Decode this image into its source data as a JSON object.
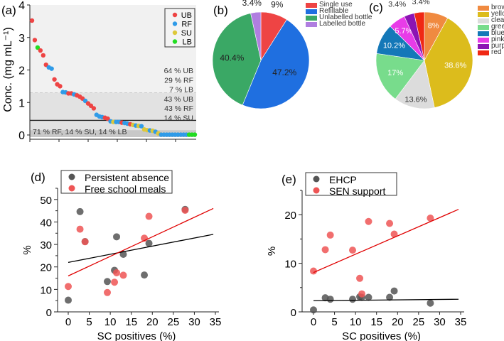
{
  "chart_data": [
    {
      "panel": "(a)",
      "type": "scatter",
      "ylabel": "Conc. (mg mL⁻¹)",
      "ylim": [
        0,
        4
      ],
      "yticks": [
        "0",
        "1",
        "2",
        "3",
        "4"
      ],
      "legend": {
        "placement": "top-right",
        "entries": [
          {
            "name": "UB",
            "color": "#ee4444"
          },
          {
            "name": "RF",
            "color": "#2f9be8"
          },
          {
            "name": "SU",
            "color": "#ddc83a"
          },
          {
            "name": "LB",
            "color": "#22dd22"
          }
        ]
      },
      "threshold": 0.45,
      "bands": [
        1.3,
        0.45,
        0.15
      ],
      "annotations": [
        "64 % UB",
        "29 % RF",
        "7 % LB",
        "43 % UB",
        "43 % RF",
        "14 % SU",
        "71 % RF, 14 % SU, 14 % LB"
      ],
      "points": [
        [
          "UB",
          3.52
        ],
        [
          "UB",
          2.92
        ],
        [
          "LB",
          2.69
        ],
        [
          "UB",
          2.6
        ],
        [
          "UB",
          2.45
        ],
        [
          "UB",
          2.16
        ],
        [
          "RF",
          2.08
        ],
        [
          "RF",
          2.04
        ],
        [
          "UB",
          1.71
        ],
        [
          "UB",
          1.56
        ],
        [
          "UB",
          1.5
        ],
        [
          "RF",
          1.32
        ],
        [
          "RF",
          1.31
        ],
        [
          "UB",
          1.28
        ],
        [
          "UB",
          1.28
        ],
        [
          "RF",
          1.25
        ],
        [
          "UB",
          1.22
        ],
        [
          "UB",
          1.18
        ],
        [
          "UB",
          1.12
        ],
        [
          "RF",
          1.05
        ],
        [
          "UB",
          0.97
        ],
        [
          "UB",
          0.9
        ],
        [
          "UB",
          0.82
        ],
        [
          "RF",
          0.62
        ],
        [
          "RF",
          0.57
        ],
        [
          "RF",
          0.55
        ],
        [
          "UB",
          0.53
        ],
        [
          "UB",
          0.5
        ],
        [
          "RF",
          0.42
        ],
        [
          "SU",
          0.4
        ],
        [
          "RF",
          0.4
        ],
        [
          "RF",
          0.4
        ],
        [
          "UB",
          0.38
        ],
        [
          "RF",
          0.37
        ],
        [
          "RF",
          0.35
        ],
        [
          "UB",
          0.33
        ],
        [
          "SU",
          0.31
        ],
        [
          "RF",
          0.29
        ],
        [
          "SU",
          0.28
        ],
        [
          "RF",
          0.27
        ],
        [
          "SU",
          0.17
        ],
        [
          "SU",
          0.15
        ],
        [
          "RF",
          0.14
        ],
        [
          "SU",
          0.13
        ],
        [
          "RF",
          0.1
        ],
        [
          "SU",
          0.05
        ],
        [
          "RF",
          0.01
        ],
        [
          "RF",
          0.01
        ],
        [
          "RF",
          0.01
        ],
        [
          "RF",
          0.01
        ],
        [
          "RF",
          0.01
        ],
        [
          "RF",
          0.01
        ],
        [
          "RF",
          0.01
        ],
        [
          "RF",
          0.01
        ],
        [
          "RF",
          0.01
        ],
        [
          "RF",
          0.01
        ],
        [
          "LB",
          0.01
        ],
        [
          "LB",
          0.01
        ],
        [
          "LB",
          0.01
        ]
      ]
    },
    {
      "panel": "(b)",
      "type": "pie",
      "slices": [
        {
          "name": "Single use",
          "value": 9,
          "label": "9%",
          "color": "#ee4444"
        },
        {
          "name": "Refillable",
          "value": 47.2,
          "label": "47.2%",
          "color": "#1f6fe0"
        },
        {
          "name": "Unlabelled bottle",
          "value": 40.4,
          "label": "40.4%",
          "color": "#3aa865"
        },
        {
          "name": "Labelled bottle",
          "value": 3.4,
          "label": "3.4%",
          "color": "#b07ee0"
        }
      ],
      "legend": "top-right"
    },
    {
      "panel": "(c)",
      "type": "pie",
      "slices": [
        {
          "name": "brown",
          "value": 8,
          "label": "8%",
          "color": "#f08a40"
        },
        {
          "name": "yellow",
          "value": 38.6,
          "label": "38.6%",
          "color": "#dcbc1c"
        },
        {
          "name": "clear",
          "value": 13.6,
          "label": "13.6%",
          "color": "#dcdcdc"
        },
        {
          "name": "green",
          "value": 17,
          "label": "17%",
          "color": "#78dc8c"
        },
        {
          "name": "blue",
          "value": 10.2,
          "label": "10.2%",
          "color": "#1478b8"
        },
        {
          "name": "pink",
          "value": 5.7,
          "label": "5.7%",
          "color": "#e83ce8"
        },
        {
          "name": "purple",
          "value": 3.4,
          "label": "3.4%",
          "color": "#8c14b4"
        },
        {
          "name": "red",
          "value": 3.4,
          "label": "3.4%",
          "color": "#f02814"
        }
      ],
      "legend": "top-right"
    },
    {
      "panel": "(d)",
      "type": "scatter",
      "xlabel": "SC positives (%)",
      "ylabel": "%",
      "xlim": [
        -2.5,
        35
      ],
      "ylim": [
        0,
        55
      ],
      "xticks": [
        0,
        5,
        10,
        15,
        20,
        25,
        30,
        35
      ],
      "yticks": [
        0,
        10,
        20,
        30,
        40,
        50
      ],
      "legend": "top-left",
      "series": [
        {
          "name": "Persistent absence",
          "color": "#555555",
          "x": [
            0,
            2.8,
            4,
            9.3,
            11,
            11.5,
            13.1,
            18.1,
            19.2,
            27.8
          ],
          "y": [
            5.2,
            44.6,
            31.3,
            13.5,
            18.5,
            33.4,
            25.6,
            16.4,
            30.5,
            45.6
          ],
          "fit": [
            [
              0,
              22
            ],
            [
              34.5,
              34.5
            ]
          ],
          "fit_color": "#000000"
        },
        {
          "name": "Free school meals",
          "color": "#ee5555",
          "x": [
            0,
            2.8,
            4,
            9.3,
            11,
            11.5,
            13.1,
            18.1,
            19.2,
            27.8
          ],
          "y": [
            11.3,
            36.8,
            31.2,
            8.6,
            13.2,
            17.4,
            16.3,
            32.8,
            42.5,
            45.2
          ],
          "fit": [
            [
              0,
              16
            ],
            [
              34.5,
              46
            ]
          ],
          "fit_color": "#e00000"
        }
      ]
    },
    {
      "panel": "(e)",
      "type": "scatter",
      "xlabel": "SC positives (%)",
      "ylabel": "%",
      "xlim": [
        -2.5,
        35
      ],
      "ylim": [
        0,
        25
      ],
      "xticks": [
        0,
        5,
        10,
        15,
        20,
        25,
        30,
        35
      ],
      "yticks": [
        0,
        10,
        20
      ],
      "legend": "top-left",
      "series": [
        {
          "name": "EHCP",
          "color": "#555555",
          "x": [
            0,
            2.8,
            4,
            9.3,
            11,
            11.5,
            13.1,
            18.1,
            19.2,
            27.8
          ],
          "y": [
            0.4,
            2.9,
            2.6,
            2.6,
            3.1,
            3.0,
            3.0,
            3.0,
            4.3,
            1.8
          ],
          "fit": [
            [
              0,
              2.3
            ],
            [
              34.5,
              2.6
            ]
          ],
          "fit_color": "#000000"
        },
        {
          "name": "SEN support",
          "color": "#ee5555",
          "x": [
            0,
            2.8,
            4,
            9.3,
            11,
            11.5,
            13.1,
            18.1,
            19.2,
            27.8
          ],
          "y": [
            8.4,
            12.8,
            15.8,
            12.7,
            6.9,
            3.7,
            18.6,
            18.2,
            16.0,
            19.3
          ],
          "fit": [
            [
              0,
              8.1
            ],
            [
              34.5,
              21.1
            ]
          ],
          "fit_color": "#e00000"
        }
      ]
    }
  ]
}
